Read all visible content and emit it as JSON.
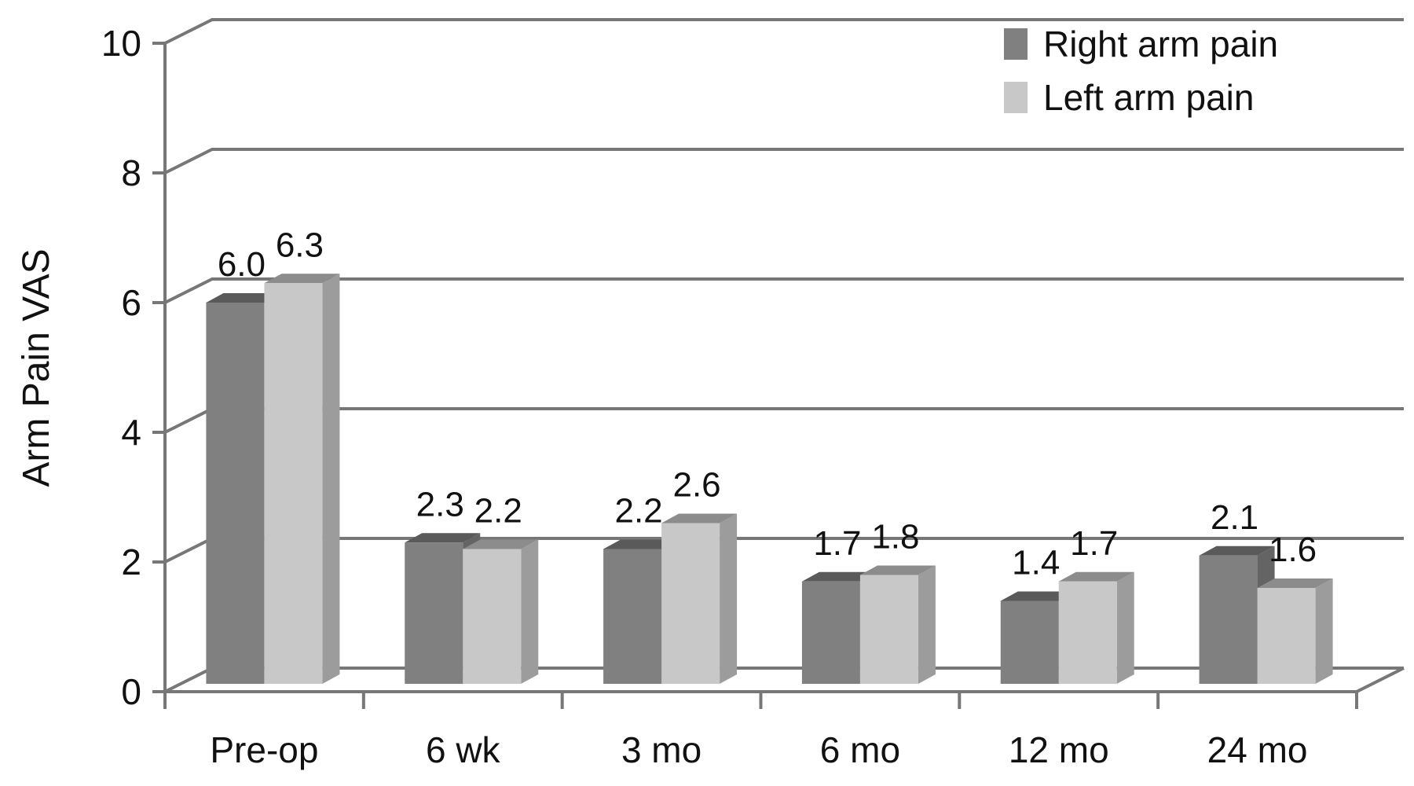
{
  "chart_data": {
    "type": "bar",
    "title": "",
    "xlabel": "",
    "ylabel": "Arm Pain VAS",
    "categories": [
      "Pre-op",
      "6 wk",
      "3 mo",
      "6 mo",
      "12 mo",
      "24 mo"
    ],
    "series": [
      {
        "name": "Right arm pain",
        "values": [
          6.0,
          2.3,
          2.2,
          1.7,
          1.4,
          2.1
        ],
        "labels": [
          "6.0",
          "2.3",
          "2.2",
          "1.7",
          "1.4",
          "2.1"
        ],
        "color": "#808080"
      },
      {
        "name": "Left arm pain",
        "values": [
          6.3,
          2.2,
          2.6,
          1.8,
          1.7,
          1.6
        ],
        "labels": [
          "6.3",
          "2.2",
          "2.6",
          "1.8",
          "1.7",
          "1.6"
        ],
        "color": "#c8c8c8"
      }
    ],
    "ylim": [
      0,
      10
    ],
    "yticks": [
      "0",
      "2",
      "4",
      "6",
      "8",
      "10"
    ],
    "grid": true,
    "style": "3d",
    "legend_position": "top-right"
  }
}
